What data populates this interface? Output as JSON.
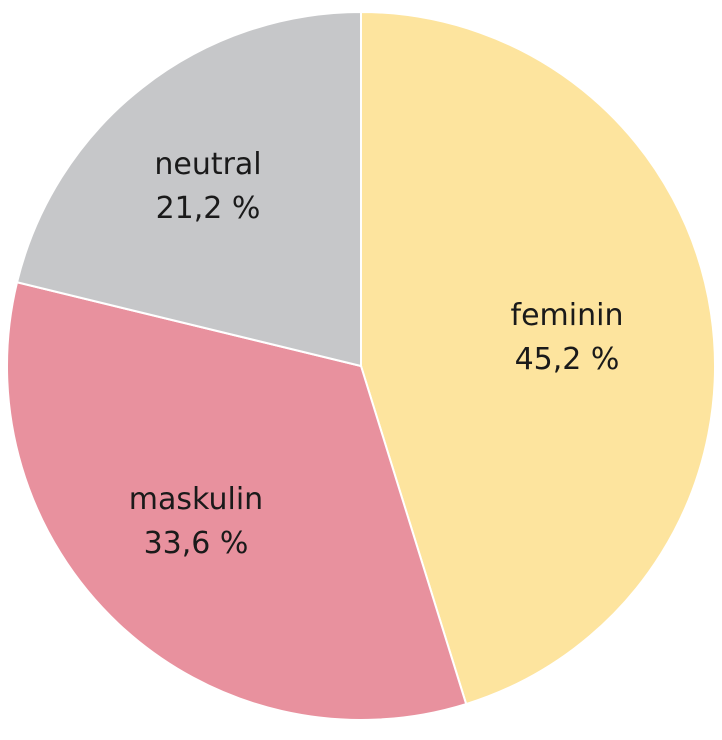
{
  "chart_data": {
    "type": "pie",
    "slices": [
      {
        "label": "feminin",
        "value": 45.2,
        "value_label": "45,2 %",
        "color": "#fde49e"
      },
      {
        "label": "maskulin",
        "value": 33.6,
        "value_label": "33,6 %",
        "color": "#e8919e"
      },
      {
        "label": "neutral",
        "value": 21.2,
        "value_label": "21,2 %",
        "color": "#c6c7c9"
      }
    ],
    "start_angle": "12 o'clock",
    "direction": "clockwise",
    "legend": "none"
  }
}
